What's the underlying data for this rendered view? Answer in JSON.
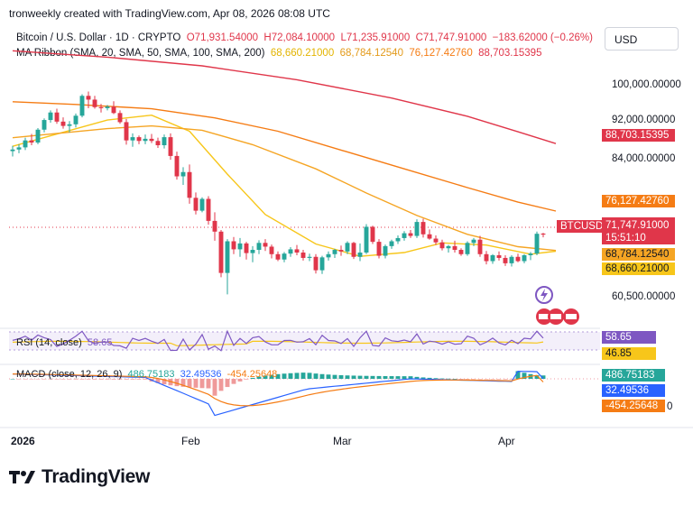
{
  "header": {
    "text": "tronweekly created with TradingView.com, Apr 08, 2026 08:08 UTC"
  },
  "symbol": {
    "title": "Bitcoin / U.S. Dollar · 1D · CRYPTO",
    "open": "O71,931.54000",
    "high": "H72,084.10000",
    "low": "L71,235.91000",
    "close": "C71,747.91000",
    "change": "−183.62000 (−0.26%)"
  },
  "ma_ribbon": {
    "label": "MA Ribbon (SMA, 20, SMA, 50, SMA, 100, SMA, 200)",
    "v20": "68,660.21000",
    "v50": "68,784.12540",
    "v100": "76,127.42760",
    "v200": "88,703.15395",
    "colors": {
      "sma20": "#f7c61a",
      "sma50": "#f5a524",
      "sma100": "#f57c14",
      "sma200": "#e0364a"
    }
  },
  "currency": "USD",
  "price_axis": {
    "ticks": [
      "100,000.00000",
      "92,000.00000",
      "84,000.00000",
      "60,500.00000"
    ],
    "tags": {
      "sma200": "88,703.15395",
      "sma100": "76,127.42760",
      "symbol": "BTCUSD",
      "last": "71,747.91000",
      "countdown": "15:51:10",
      "sma50": "68,784.12540",
      "sma20": "68,660.21000"
    }
  },
  "rsi": {
    "label": "RSI (14, close)",
    "value": "58.65",
    "ma_value": "46.85",
    "colors": {
      "rsi": "#7e57c2",
      "ma": "#f7c61a"
    }
  },
  "macd": {
    "label": "MACD (close, 12, 26, 9)",
    "histogram": "486.75183",
    "macd": "32.49536",
    "signal": "-454.25648",
    "axis_suffix": "0",
    "colors": {
      "histogram": "#26a69a",
      "macd": "#2962ff",
      "signal": "#f57c14"
    }
  },
  "time_axis": [
    "2026",
    "Feb",
    "Mar",
    "Apr"
  ],
  "logo_text": "TradingView",
  "chart_data": {
    "type": "candlestick",
    "title": "Bitcoin / U.S. Dollar · 1D · CRYPTO",
    "ylim": [
      56000,
      104000
    ],
    "candles": [
      [
        87300,
        88300,
        86300,
        87600
      ],
      [
        87600,
        88600,
        86900,
        88000
      ],
      [
        88000,
        89800,
        87500,
        89300
      ],
      [
        89300,
        90500,
        88400,
        88900
      ],
      [
        88900,
        91600,
        88600,
        91300
      ],
      [
        91300,
        93400,
        90800,
        93100
      ],
      [
        93100,
        94900,
        92600,
        94500
      ],
      [
        94500,
        95200,
        92400,
        92800
      ],
      [
        92800,
        93600,
        91500,
        92000
      ],
      [
        92000,
        92900,
        90800,
        92300
      ],
      [
        92300,
        94300,
        91700,
        93900
      ],
      [
        93900,
        97900,
        93600,
        97600
      ],
      [
        97600,
        98400,
        95300,
        96900
      ],
      [
        96900,
        97600,
        95200,
        95500
      ],
      [
        95500,
        96100,
        94500,
        95300
      ],
      [
        95300,
        95900,
        94900,
        95600
      ],
      [
        95600,
        96600,
        94200,
        94400
      ],
      [
        94400,
        94900,
        92400,
        92700
      ],
      [
        92700,
        93300,
        88500,
        89300
      ],
      [
        89300,
        90600,
        88100,
        89900
      ],
      [
        89900,
        90200,
        88600,
        89200
      ],
      [
        89200,
        90400,
        88600,
        89600
      ],
      [
        89600,
        90500,
        88800,
        89200
      ],
      [
        89200,
        89800,
        87900,
        88400
      ],
      [
        88400,
        90400,
        87800,
        89900
      ],
      [
        89900,
        90600,
        85700,
        86400
      ],
      [
        86400,
        87200,
        82000,
        82600
      ],
      [
        82600,
        84300,
        81000,
        83400
      ],
      [
        83400,
        84800,
        77500,
        78600
      ],
      [
        78600,
        79600,
        75500,
        76200
      ],
      [
        76200,
        78700,
        75900,
        78400
      ],
      [
        78400,
        78900,
        73600,
        74300
      ],
      [
        74300,
        75900,
        70600,
        72300
      ],
      [
        72300,
        72600,
        63800,
        64600
      ],
      [
        64600,
        70900,
        60600,
        70500
      ],
      [
        70500,
        71300,
        68100,
        69000
      ],
      [
        69000,
        71100,
        67600,
        70100
      ],
      [
        70100,
        70400,
        67100,
        68300
      ],
      [
        68300,
        69600,
        66600,
        68900
      ],
      [
        68900,
        70700,
        68100,
        70200
      ],
      [
        70200,
        70900,
        68700,
        69500
      ],
      [
        69500,
        69900,
        67300,
        68100
      ],
      [
        68100,
        68600,
        66800,
        67100
      ],
      [
        67100,
        68500,
        66600,
        68200
      ],
      [
        68200,
        69400,
        67600,
        69000
      ],
      [
        69000,
        69800,
        67900,
        68400
      ],
      [
        68400,
        68900,
        66900,
        67400
      ],
      [
        67400,
        68200,
        66800,
        67600
      ],
      [
        67600,
        68100,
        64500,
        65100
      ],
      [
        65100,
        67800,
        64400,
        67500
      ],
      [
        67500,
        68600,
        66900,
        68100
      ],
      [
        68100,
        69100,
        67400,
        68900
      ],
      [
        68900,
        69700,
        67800,
        68600
      ],
      [
        68600,
        70500,
        68100,
        70200
      ],
      [
        70200,
        70400,
        67200,
        67600
      ],
      [
        67600,
        70100,
        66800,
        68400
      ],
      [
        68400,
        73700,
        68100,
        73200
      ],
      [
        73200,
        73400,
        70000,
        70400
      ],
      [
        70400,
        70900,
        67300,
        67800
      ],
      [
        67800,
        69900,
        67300,
        69600
      ],
      [
        69600,
        70800,
        69100,
        70500
      ],
      [
        70500,
        71600,
        70000,
        71100
      ],
      [
        71100,
        72400,
        70600,
        72000
      ],
      [
        72000,
        72600,
        71100,
        71500
      ],
      [
        71500,
        74600,
        71100,
        74100
      ],
      [
        74100,
        74700,
        71200,
        71800
      ],
      [
        71800,
        72700,
        70800,
        71000
      ],
      [
        71000,
        71600,
        69800,
        70300
      ],
      [
        70300,
        70800,
        68800,
        69200
      ],
      [
        69200,
        69800,
        68400,
        69600
      ],
      [
        69600,
        70600,
        68400,
        68900
      ],
      [
        68900,
        69200,
        67800,
        68100
      ],
      [
        68100,
        70500,
        67800,
        70200
      ],
      [
        70200,
        71100,
        69600,
        70800
      ],
      [
        70800,
        71500,
        67600,
        68100
      ],
      [
        68100,
        68700,
        66200,
        66800
      ],
      [
        66800,
        68100,
        66300,
        67900
      ],
      [
        67900,
        68600,
        66900,
        67400
      ],
      [
        67400,
        67900,
        65900,
        66400
      ],
      [
        66400,
        67900,
        65800,
        67600
      ],
      [
        67600,
        68200,
        66600,
        66800
      ],
      [
        66800,
        68100,
        66400,
        67900
      ],
      [
        67900,
        68500,
        67000,
        68200
      ],
      [
        68200,
        72300,
        67900,
        71900
      ],
      [
        71931.54,
        72084.1,
        71235.91,
        71747.91
      ]
    ],
    "ma_series": [
      {
        "name": "SMA 20",
        "values": [
          [
            0,
            88200
          ],
          [
            15,
            93100
          ],
          [
            22,
            94000
          ],
          [
            28,
            91000
          ],
          [
            34,
            83000
          ],
          [
            40,
            75500
          ],
          [
            48,
            70000
          ],
          [
            55,
            67700
          ],
          [
            62,
            68400
          ],
          [
            68,
            70200
          ],
          [
            75,
            69800
          ],
          [
            82,
            68100
          ],
          [
            86,
            68660
          ]
        ]
      },
      {
        "name": "SMA 50",
        "values": [
          [
            0,
            89800
          ],
          [
            15,
            91500
          ],
          [
            22,
            92000
          ],
          [
            30,
            91200
          ],
          [
            38,
            88500
          ],
          [
            48,
            84000
          ],
          [
            56,
            79500
          ],
          [
            64,
            75300
          ],
          [
            72,
            71800
          ],
          [
            80,
            69500
          ],
          [
            86,
            68784
          ]
        ]
      },
      {
        "name": "SMA 100",
        "values": [
          [
            0,
            96500
          ],
          [
            10,
            96000
          ],
          [
            22,
            95200
          ],
          [
            32,
            93500
          ],
          [
            42,
            91000
          ],
          [
            52,
            87500
          ],
          [
            62,
            84000
          ],
          [
            72,
            80500
          ],
          [
            80,
            77800
          ],
          [
            86,
            76127
          ]
        ]
      },
      {
        "name": "SMA 200",
        "values": [
          [
            0,
            106000
          ],
          [
            15,
            104800
          ],
          [
            30,
            103200
          ],
          [
            45,
            100600
          ],
          [
            60,
            97200
          ],
          [
            72,
            93800
          ],
          [
            80,
            90900
          ],
          [
            86,
            88703
          ]
        ]
      }
    ],
    "rsi": {
      "ylim": [
        0,
        100
      ],
      "rsi_value": 58.65,
      "ma_value": 46.85
    },
    "macd": {
      "histogram": 486.75183,
      "macd": 32.49536,
      "signal": -454.25648
    }
  }
}
